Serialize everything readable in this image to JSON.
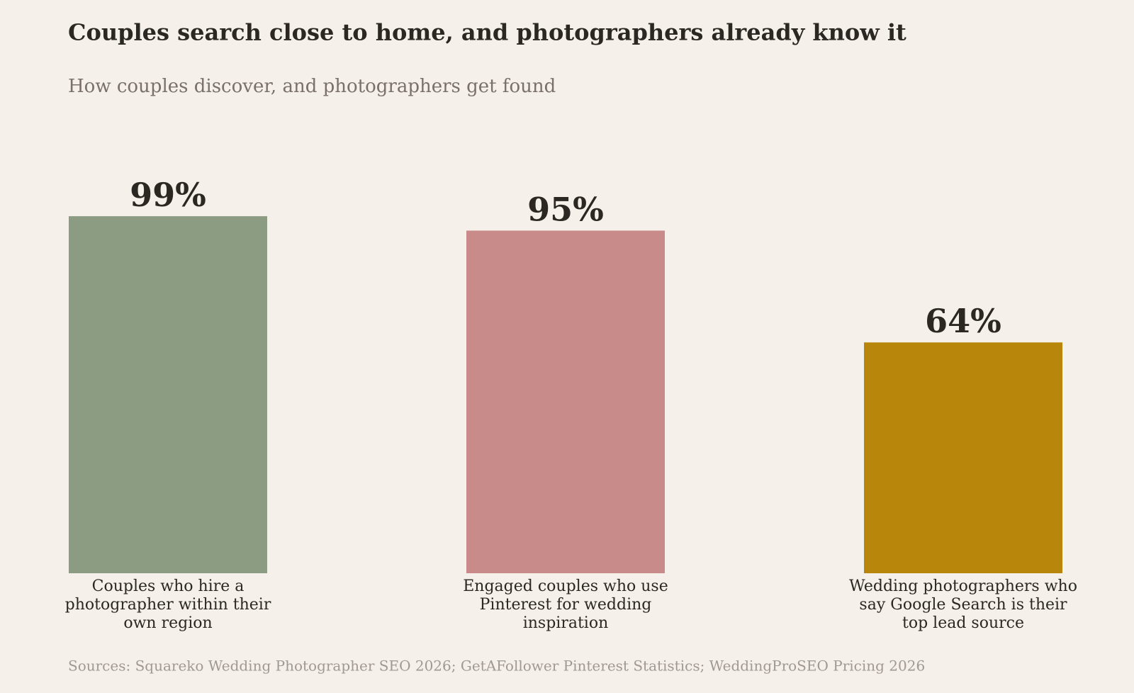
{
  "chart_data": {
    "type": "bar",
    "title": "Couples search close to home, and photographers already know it",
    "subtitle": "How couples discover, and photographers get found",
    "categories": [
      "Couples who hire a photographer within their own region",
      "Engaged couples who use Pinterest for wedding inspiration",
      "Wedding photographers who say Google Search is their top lead source"
    ],
    "values": [
      99,
      95,
      64
    ],
    "value_labels": [
      "99%",
      "95%",
      "64%"
    ],
    "colors": [
      "#8c9c82",
      "#c98a8a",
      "#b8860b"
    ],
    "ylim": [
      0,
      100
    ],
    "source": "Sources: Squareko Wedding Photographer SEO 2026; GetAFollower Pinterest Statistics; WeddingProSEO Pricing 2026"
  }
}
